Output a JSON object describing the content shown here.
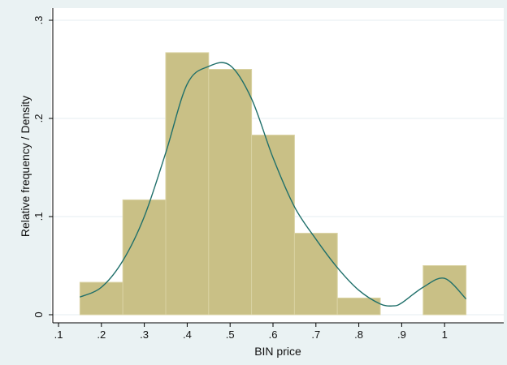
{
  "chart_data": {
    "type": "bar",
    "xlabel": "BIN price",
    "ylabel": "Relative frequency / Density",
    "xlim": [
      0.1,
      1.05
    ],
    "ylim": [
      0,
      0.3
    ],
    "grid": true,
    "legend": "none",
    "x_ticks": [
      {
        "value": 0.1,
        "label": ".1"
      },
      {
        "value": 0.2,
        "label": ".2"
      },
      {
        "value": 0.3,
        "label": ".3"
      },
      {
        "value": 0.4,
        "label": ".4"
      },
      {
        "value": 0.5,
        "label": ".5"
      },
      {
        "value": 0.6,
        "label": ".6"
      },
      {
        "value": 0.7,
        "label": ".7"
      },
      {
        "value": 0.8,
        "label": ".8"
      },
      {
        "value": 0.9,
        "label": ".9"
      },
      {
        "value": 1.0,
        "label": "1"
      }
    ],
    "y_ticks": [
      {
        "value": 0,
        "label": "0"
      },
      {
        "value": 0.1,
        "label": ".1"
      },
      {
        "value": 0.2,
        "label": ".2"
      },
      {
        "value": 0.3,
        "label": ".3"
      }
    ],
    "bins": [
      {
        "x0": 0.15,
        "x1": 0.25,
        "value": 0.033
      },
      {
        "x0": 0.25,
        "x1": 0.35,
        "value": 0.117
      },
      {
        "x0": 0.35,
        "x1": 0.45,
        "value": 0.267
      },
      {
        "x0": 0.45,
        "x1": 0.55,
        "value": 0.25
      },
      {
        "x0": 0.55,
        "x1": 0.65,
        "value": 0.183
      },
      {
        "x0": 0.65,
        "x1": 0.75,
        "value": 0.083
      },
      {
        "x0": 0.75,
        "x1": 0.85,
        "value": 0.017
      },
      {
        "x0": 0.95,
        "x1": 1.05,
        "value": 0.05
      }
    ],
    "density_curve": {
      "x": [
        0.15,
        0.2,
        0.25,
        0.3,
        0.35,
        0.4,
        0.45,
        0.5,
        0.55,
        0.6,
        0.65,
        0.7,
        0.75,
        0.8,
        0.85,
        0.88,
        0.9,
        0.95,
        1.0,
        1.05
      ],
      "y": [
        0.018,
        0.028,
        0.055,
        0.1,
        0.165,
        0.235,
        0.253,
        0.254,
        0.22,
        0.16,
        0.11,
        0.077,
        0.048,
        0.025,
        0.011,
        0.009,
        0.012,
        0.028,
        0.037,
        0.016
      ]
    },
    "colors": {
      "background": "#eaf2f3",
      "plot_background": "#ffffff",
      "bar_fill": "#c9c086",
      "bar_stroke": "#d9d2a2",
      "curve": "#1f6f6a",
      "grid": "#e6eef0",
      "axis": "#000000"
    }
  }
}
